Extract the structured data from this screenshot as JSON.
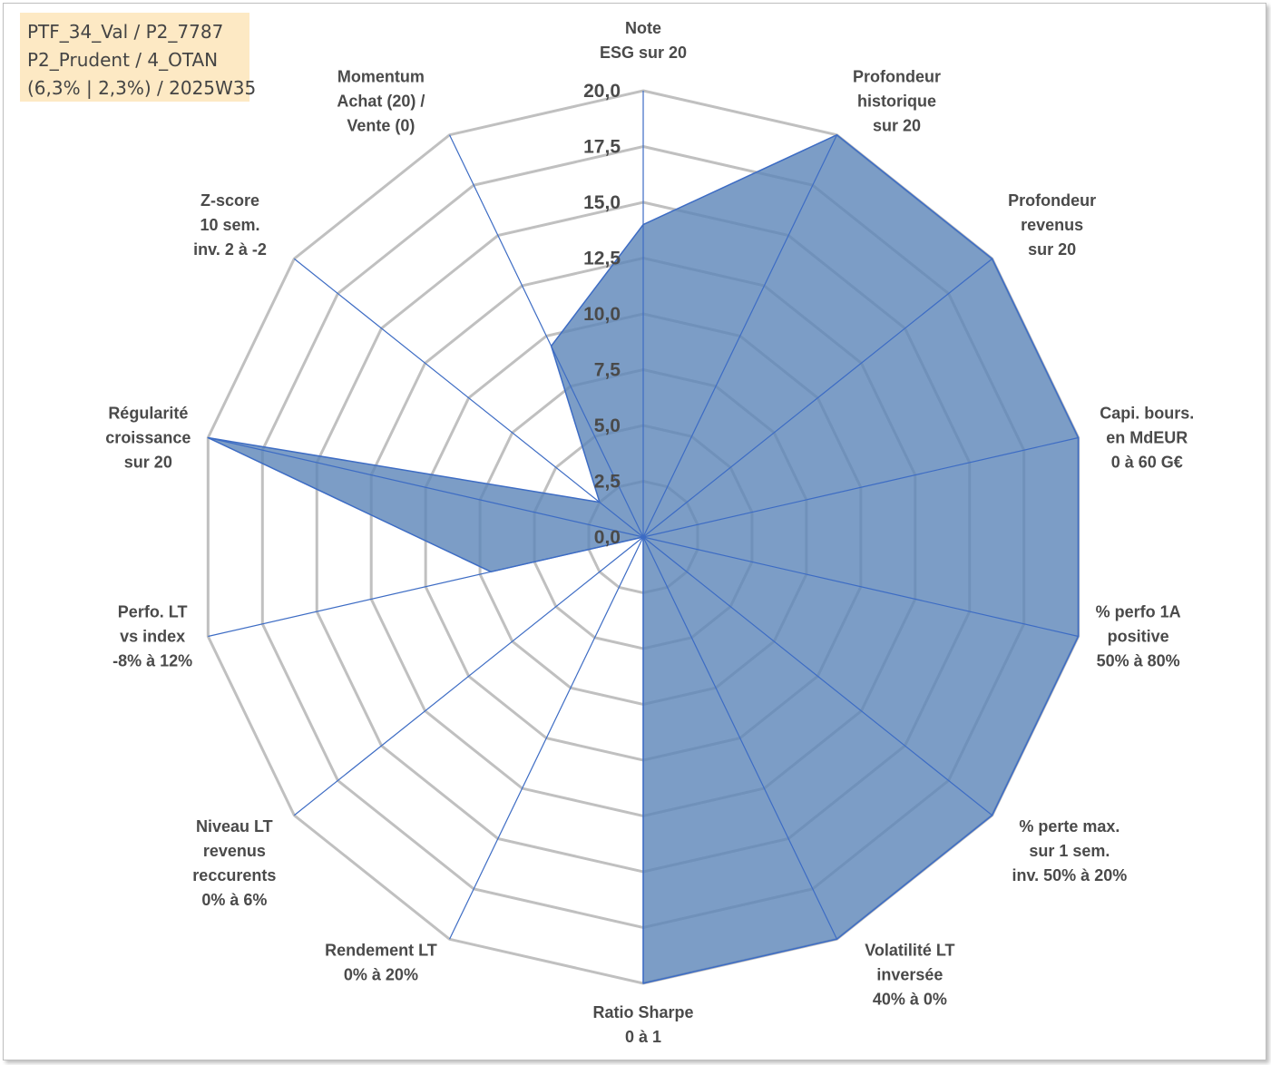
{
  "info_box": {
    "line1": "PTF_34_Val / P2_7787",
    "line2": "P2_Prudent / 4_OTAN",
    "line3": "(6,3% | 2,3%) / 2025W35"
  },
  "colors": {
    "fill": "#5b85b8",
    "spoke": "#3d6cc4",
    "grid": "#c0c0c0",
    "info_bg": "#fde9c4"
  },
  "chart_data": {
    "type": "radar",
    "rmin": 0,
    "rmax": 20,
    "ticks": [
      "0,0",
      "2,5",
      "5,0",
      "7,5",
      "10,0",
      "12,5",
      "15,0",
      "17,5",
      "20,0"
    ],
    "axes": [
      [
        "Note",
        "ESG sur 20"
      ],
      [
        "Profondeur",
        "historique",
        "sur 20"
      ],
      [
        "Profondeur",
        "revenus",
        "sur 20"
      ],
      [
        "Capi. bours.",
        "en MdEUR",
        "0 à 60 G€"
      ],
      [
        "% perfo 1A",
        "positive",
        "50% à 80%"
      ],
      [
        "% perte max.",
        "sur 1 sem.",
        "inv. 50% à 20%"
      ],
      [
        "Volatilité LT",
        "inversée",
        "40% à 0%"
      ],
      [
        "Ratio Sharpe",
        "0 à 1"
      ],
      [
        "Rendement LT",
        "0% à 20%"
      ],
      [
        "Niveau LT",
        "revenus",
        "reccurents",
        "0% à 6%"
      ],
      [
        "Perfo. LT",
        "vs index",
        "-8% à 12%"
      ],
      [
        "Régularité",
        "croissance",
        "sur 20"
      ],
      [
        "Z-score",
        "10 sem.",
        "inv. 2 à -2"
      ],
      [
        "Momentum",
        "Achat (20) /",
        "Vente (0)"
      ]
    ],
    "series": [
      {
        "values": [
          14.0,
          20.0,
          20.0,
          20.0,
          20.0,
          20.0,
          20.0,
          20.0,
          0.0,
          0.0,
          7.0,
          20.0,
          2.5,
          9.5
        ]
      }
    ],
    "grid": true,
    "legend": "none"
  }
}
